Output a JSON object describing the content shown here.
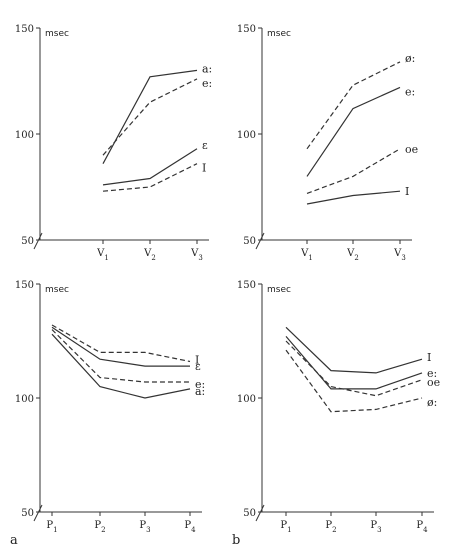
{
  "chart_data": [
    {
      "type": "line",
      "panel": "top-left",
      "ylabel": "msec",
      "ylim": [
        50,
        150
      ],
      "yticks": [
        50,
        100,
        150
      ],
      "categories": [
        "V1",
        "V2",
        "V3"
      ],
      "series": [
        {
          "name": "a:",
          "style": "solid",
          "values": [
            86,
            127,
            130
          ]
        },
        {
          "name": "e:",
          "style": "dashed",
          "values": [
            90,
            115,
            126
          ]
        },
        {
          "name": "ɛ",
          "style": "solid",
          "values": [
            76,
            79,
            93
          ]
        },
        {
          "name": "I",
          "style": "dashed",
          "values": [
            73,
            75,
            86
          ]
        }
      ]
    },
    {
      "type": "line",
      "panel": "top-right",
      "ylabel": "msec",
      "ylim": [
        50,
        150
      ],
      "yticks": [
        50,
        100,
        150
      ],
      "categories": [
        "V1",
        "V2",
        "V3"
      ],
      "series": [
        {
          "name": "ø:",
          "style": "dashed",
          "values": [
            93,
            123,
            134
          ]
        },
        {
          "name": "e:",
          "style": "solid",
          "values": [
            80,
            112,
            122
          ]
        },
        {
          "name": "oe",
          "style": "dashed",
          "values": [
            72,
            80,
            93
          ]
        },
        {
          "name": "I",
          "style": "solid",
          "values": [
            67,
            71,
            73
          ]
        }
      ]
    },
    {
      "type": "line",
      "panel": "bottom-left",
      "label": "a",
      "ylabel": "msec",
      "ylim": [
        50,
        150
      ],
      "yticks": [
        50,
        100,
        150
      ],
      "categories": [
        "P1",
        "P2",
        "P3",
        "P4"
      ],
      "series": [
        {
          "name": "I",
          "style": "dashed",
          "values": [
            132,
            120,
            120,
            116
          ]
        },
        {
          "name": "ɛ",
          "style": "solid",
          "values": [
            131,
            117,
            114,
            114
          ]
        },
        {
          "name": "e:",
          "style": "dashed",
          "values": [
            130,
            109,
            107,
            107
          ]
        },
        {
          "name": "a:",
          "style": "solid",
          "values": [
            128,
            105,
            100,
            104
          ]
        }
      ]
    },
    {
      "type": "line",
      "panel": "bottom-right",
      "label": "b",
      "ylabel": "msec",
      "ylim": [
        50,
        150
      ],
      "yticks": [
        50,
        100,
        150
      ],
      "categories": [
        "P1",
        "P2",
        "P3",
        "P4"
      ],
      "series": [
        {
          "name": "I",
          "style": "solid",
          "values": [
            131,
            112,
            111,
            117
          ]
        },
        {
          "name": "e:",
          "style": "solid",
          "values": [
            127,
            104,
            104,
            111
          ]
        },
        {
          "name": "oe",
          "style": "dashed",
          "values": [
            125,
            105,
            101,
            108
          ]
        },
        {
          "name": "ø:",
          "style": "dashed",
          "values": [
            121,
            94,
            95,
            100
          ]
        }
      ]
    }
  ]
}
